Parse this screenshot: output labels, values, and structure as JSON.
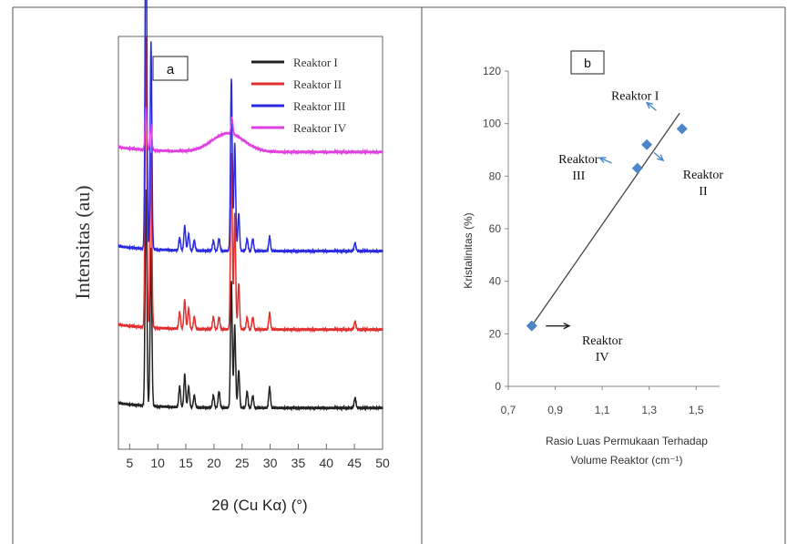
{
  "chart_data": [
    {
      "type": "line",
      "panel_label": "a",
      "xlabel": "2θ (Cu Kα) (°)",
      "ylabel": "Intensitas (au)",
      "xlim": [
        3,
        50
      ],
      "x_ticks": [
        "5",
        "10",
        "15",
        "20",
        "25",
        "30",
        "35",
        "40",
        "45",
        "50"
      ],
      "grid": false,
      "legend_position": "top-right",
      "series": [
        {
          "name": "Reaktor I",
          "color": "#222222",
          "baseline": 0.1,
          "peaks": [
            [
              7.9,
              0.52
            ],
            [
              8.8,
              0.38
            ],
            [
              13.9,
              0.05
            ],
            [
              14.8,
              0.08
            ],
            [
              15.5,
              0.05
            ],
            [
              16.5,
              0.03
            ],
            [
              19.9,
              0.03
            ],
            [
              20.9,
              0.04
            ],
            [
              23.1,
              0.31
            ],
            [
              23.7,
              0.2
            ],
            [
              24.4,
              0.09
            ],
            [
              25.9,
              0.04
            ],
            [
              26.9,
              0.03
            ],
            [
              29.9,
              0.05
            ],
            [
              45.1,
              0.025
            ]
          ]
        },
        {
          "name": "Reaktor II",
          "color": "#e03030",
          "baseline": 0.29,
          "peaks": [
            [
              7.9,
              0.7
            ],
            [
              8.8,
              0.42
            ],
            [
              13.9,
              0.04
            ],
            [
              14.8,
              0.07
            ],
            [
              15.5,
              0.05
            ],
            [
              16.5,
              0.03
            ],
            [
              19.9,
              0.03
            ],
            [
              20.9,
              0.03
            ],
            [
              23.1,
              0.43
            ],
            [
              23.7,
              0.28
            ],
            [
              24.4,
              0.11
            ],
            [
              25.9,
              0.03
            ],
            [
              26.9,
              0.03
            ],
            [
              29.9,
              0.04
            ],
            [
              45.1,
              0.02
            ]
          ]
        },
        {
          "name": "Reaktor III",
          "color": "#2a2ae0",
          "baseline": 0.48,
          "peaks": [
            [
              7.9,
              0.85
            ],
            [
              8.8,
              0.5
            ],
            [
              13.9,
              0.03
            ],
            [
              14.8,
              0.06
            ],
            [
              15.5,
              0.04
            ],
            [
              16.5,
              0.025
            ],
            [
              19.9,
              0.025
            ],
            [
              20.9,
              0.03
            ],
            [
              23.1,
              0.42
            ],
            [
              23.7,
              0.26
            ],
            [
              24.4,
              0.09
            ],
            [
              25.9,
              0.03
            ],
            [
              26.9,
              0.03
            ],
            [
              29.9,
              0.035
            ],
            [
              45.1,
              0.02
            ]
          ]
        },
        {
          "name": "Reaktor IV",
          "color": "#e040e0",
          "baseline": 0.72,
          "hump": [
            22.5,
            0.045
          ],
          "peaks": [
            [
              7.9,
              0.1
            ],
            [
              8.8,
              0.06
            ],
            [
              23.2,
              0.04
            ]
          ]
        }
      ]
    },
    {
      "type": "scatter",
      "panel_label": "b",
      "xlabel": "Rasio Luas  Permukaan Terhadap Volume Reaktor (cm⁻¹)",
      "xlabel_lines": [
        "Rasio Luas  Permukaan Terhadap",
        "Volume Reaktor (cm⁻¹)"
      ],
      "ylabel": "Kristalinitas (%)",
      "xlim": [
        0.7,
        1.6
      ],
      "ylim": [
        0,
        120
      ],
      "x_ticks": [
        "0,7",
        "0,9",
        "1,1",
        "1,3",
        "1,5"
      ],
      "y_ticks": [
        "0",
        "20",
        "40",
        "60",
        "80",
        "100",
        "120"
      ],
      "grid": false,
      "marker_color": "#4a86c8",
      "points": [
        {
          "x": 0.8,
          "y": 23
        },
        {
          "x": 1.25,
          "y": 83
        },
        {
          "x": 1.29,
          "y": 92
        },
        {
          "x": 1.44,
          "y": 98
        }
      ],
      "trendline": [
        [
          0.8,
          23
        ],
        [
          1.43,
          104
        ]
      ],
      "annotations": [
        {
          "lines": [
            "Reaktor I"
          ],
          "x": 1.24,
          "y": 109
        },
        {
          "lines": [
            "Reaktor",
            "III"
          ],
          "x": 1.0,
          "y": 85
        },
        {
          "lines": [
            "Reaktor",
            "II"
          ],
          "x": 1.53,
          "y": 79
        },
        {
          "lines": [
            "Reaktor",
            "IV"
          ],
          "x": 1.1,
          "y": 16
        }
      ]
    }
  ]
}
